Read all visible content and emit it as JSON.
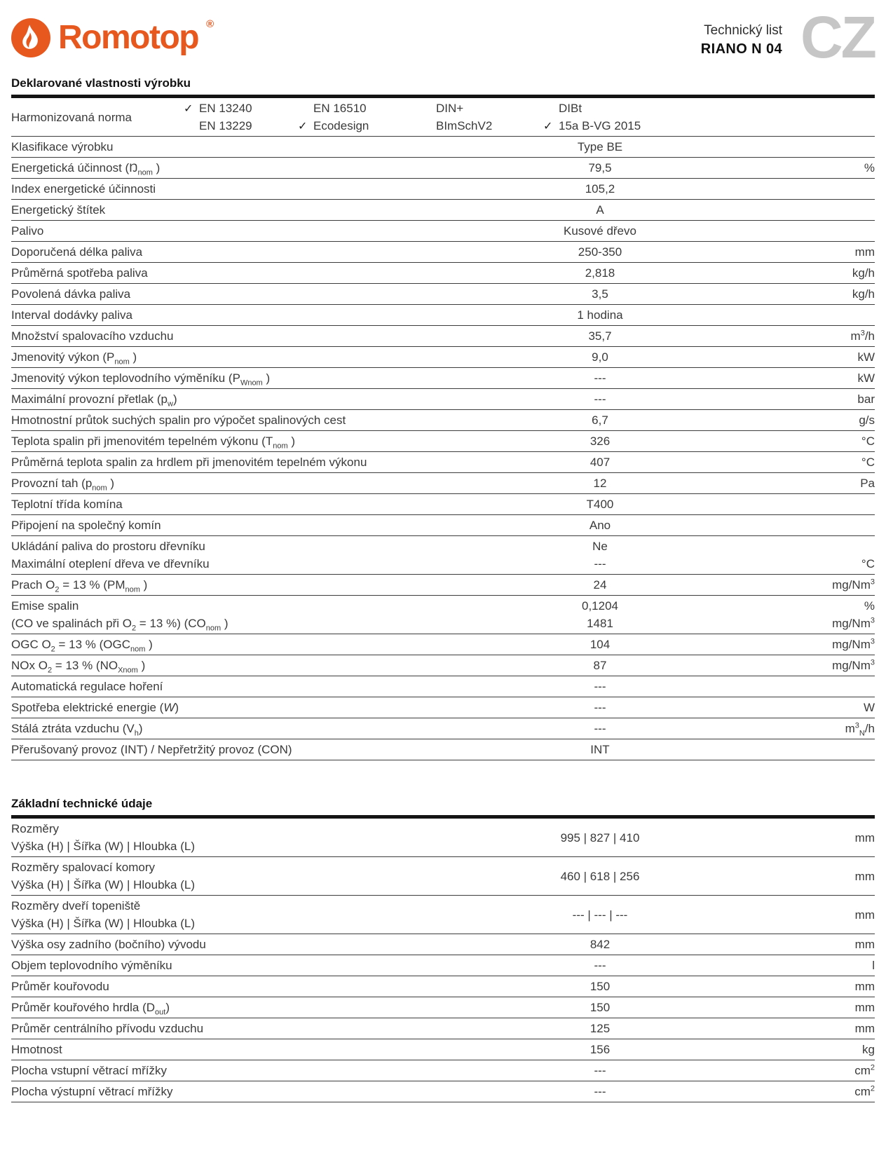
{
  "header": {
    "logo_text": "Romotop",
    "logo_reg": "®",
    "doc_type": "Technický list",
    "product": "RIANO N 04",
    "lang": "CZ"
  },
  "icons": {
    "check": "✓",
    "flame": "flame-icon"
  },
  "colors": {
    "brand_orange": "#E7581F",
    "lang_gray": "#C6C6C6",
    "text": "#3A3A3A"
  },
  "sections": [
    {
      "title": "Deklarované vlastnosti výrobku",
      "norms": {
        "label": "Harmonizovaná norma",
        "columns": [
          {
            "lines": [
              {
                "checked": true,
                "text": "EN 13240"
              },
              {
                "checked": false,
                "text": "EN 13229"
              }
            ]
          },
          {
            "lines": [
              {
                "checked": false,
                "text": "EN 16510"
              },
              {
                "checked": true,
                "text": "Ecodesign"
              }
            ]
          },
          {
            "lines": [
              {
                "checked": false,
                "text": "DIN+"
              },
              {
                "checked": false,
                "text": "BImSchV2"
              }
            ]
          },
          {
            "lines": [
              {
                "checked": false,
                "text": "DIBt"
              },
              {
                "checked": true,
                "text": "15a B-VG 2015"
              }
            ]
          }
        ]
      },
      "rows": [
        {
          "label": [
            "Klasifikace výrobku"
          ],
          "value": [
            "Type BE"
          ],
          "unit": [
            ""
          ]
        },
        {
          "label": [
            "Energetická účinnost (Ŋ_{nom} )"
          ],
          "value": [
            "79,5"
          ],
          "unit": [
            "%"
          ]
        },
        {
          "label": [
            "Index energetické účinnosti"
          ],
          "value": [
            "105,2"
          ],
          "unit": [
            ""
          ]
        },
        {
          "label": [
            "Energetický štítek"
          ],
          "value": [
            "A"
          ],
          "unit": [
            ""
          ]
        },
        {
          "label": [
            "Palivo"
          ],
          "value": [
            "Kusové dřevo"
          ],
          "unit": [
            ""
          ]
        },
        {
          "label": [
            "Doporučená délka paliva"
          ],
          "value": [
            "250-350"
          ],
          "unit": [
            "mm"
          ]
        },
        {
          "label": [
            "Průměrná spotřeba paliva"
          ],
          "value": [
            "2,818"
          ],
          "unit": [
            "kg/h"
          ]
        },
        {
          "label": [
            "Povolená dávka paliva"
          ],
          "value": [
            "3,5"
          ],
          "unit": [
            "kg/h"
          ]
        },
        {
          "label": [
            "Interval dodávky paliva"
          ],
          "value": [
            "1 hodina"
          ],
          "unit": [
            ""
          ]
        },
        {
          "label": [
            "Množství spalovacího vzduchu"
          ],
          "value": [
            "35,7"
          ],
          "unit": [
            "m^{3}/h"
          ]
        },
        {
          "label": [
            "Jmenovitý výkon (P_{nom} )"
          ],
          "value": [
            "9,0"
          ],
          "unit": [
            "kW"
          ]
        },
        {
          "label": [
            "Jmenovitý výkon teplovodního výměníku (P_{Wnom} )"
          ],
          "value": [
            "---"
          ],
          "unit": [
            "kW"
          ]
        },
        {
          "label": [
            "Maximální provozní přetlak (p_{w})"
          ],
          "value": [
            "---"
          ],
          "unit": [
            "bar"
          ]
        },
        {
          "label": [
            "Hmotnostní průtok suchých spalin pro výpočet spalinových cest"
          ],
          "value": [
            "6,7"
          ],
          "unit": [
            "g/s"
          ]
        },
        {
          "label": [
            "Teplota spalin při jmenovitém tepelném výkonu (T_{nom} )"
          ],
          "value": [
            "326"
          ],
          "unit": [
            "°C"
          ]
        },
        {
          "label": [
            "Průměrná teplota spalin za hrdlem při jmenovitém tepelném výkonu"
          ],
          "value": [
            "407"
          ],
          "unit": [
            "°C"
          ]
        },
        {
          "label": [
            "Provozní tah (p_{nom} )"
          ],
          "value": [
            "12"
          ],
          "unit": [
            "Pa"
          ]
        },
        {
          "label": [
            "Teplotní třída komína"
          ],
          "value": [
            "T400"
          ],
          "unit": [
            ""
          ]
        },
        {
          "label": [
            "Připojení na společný komín"
          ],
          "value": [
            "Ano"
          ],
          "unit": [
            ""
          ]
        },
        {
          "label": [
            "Ukládání paliva do prostoru dřevníku",
            "Maximální oteplení dřeva ve dřevníku"
          ],
          "value": [
            "Ne",
            "---"
          ],
          "unit": [
            "",
            "°C"
          ]
        },
        {
          "label": [
            "Prach O_{2} = 13 % (PM_{nom} )"
          ],
          "value": [
            "24"
          ],
          "unit": [
            "mg/Nm^{3}"
          ]
        },
        {
          "label": [
            "Emise spalin",
            "(CO ve spalinách při O_{2} = 13 %) (CO_{nom} )"
          ],
          "value": [
            "0,1204",
            "1481"
          ],
          "unit": [
            "%",
            "mg/Nm^{3}"
          ]
        },
        {
          "label": [
            "OGC O_{2} = 13 % (OGC_{nom} )"
          ],
          "value": [
            "104"
          ],
          "unit": [
            "mg/Nm^{3}"
          ]
        },
        {
          "label": [
            "NOx O_{2} = 13 % (NO_{Xnom} )"
          ],
          "value": [
            "87"
          ],
          "unit": [
            "mg/Nm^{3}"
          ]
        },
        {
          "label": [
            "Automatická regulace hoření"
          ],
          "value": [
            "---"
          ],
          "unit": [
            ""
          ]
        },
        {
          "label": [
            "Spotřeba elektrické energie (*{W}*)"
          ],
          "value": [
            "---"
          ],
          "unit": [
            "W"
          ]
        },
        {
          "label": [
            "Stálá ztráta vzduchu (V_{h})"
          ],
          "value": [
            "---"
          ],
          "unit": [
            "m^{3}_{N}/h"
          ]
        },
        {
          "label": [
            "Přerušovaný provoz (INT) / Nepřetržitý provoz (CON)"
          ],
          "value": [
            "INT"
          ],
          "unit": [
            ""
          ]
        }
      ]
    },
    {
      "title": "Základní technické údaje",
      "rows": [
        {
          "label": [
            "Rozměry",
            "Výška (H) | Šířka (W) | Hloubka (L)"
          ],
          "value": [
            "995 | 827 | 410"
          ],
          "unit": [
            "mm"
          ]
        },
        {
          "label": [
            "Rozměry spalovací komory",
            "Výška (H) | Šířka (W) | Hloubka (L)"
          ],
          "value": [
            "460 | 618 | 256"
          ],
          "unit": [
            "mm"
          ]
        },
        {
          "label": [
            "Rozměry dveří topeniště",
            "Výška (H) | Šířka (W) | Hloubka (L)"
          ],
          "value": [
            "--- | --- | ---"
          ],
          "unit": [
            "mm"
          ]
        },
        {
          "label": [
            "Výška osy zadního (bočního) vývodu"
          ],
          "value": [
            "842"
          ],
          "unit": [
            "mm"
          ]
        },
        {
          "label": [
            "Objem teplovodního výměníku"
          ],
          "value": [
            "---"
          ],
          "unit": [
            "l"
          ]
        },
        {
          "label": [
            "Průměr kouřovodu"
          ],
          "value": [
            "150"
          ],
          "unit": [
            "mm"
          ]
        },
        {
          "label": [
            "Průměr kouřového hrdla (D_{out})"
          ],
          "value": [
            "150"
          ],
          "unit": [
            "mm"
          ]
        },
        {
          "label": [
            "Průměr centrálního přívodu vzduchu"
          ],
          "value": [
            "125"
          ],
          "unit": [
            "mm"
          ]
        },
        {
          "label": [
            "Hmotnost"
          ],
          "value": [
            "156"
          ],
          "unit": [
            "kg"
          ]
        },
        {
          "label": [
            "Plocha vstupní větrací mřížky"
          ],
          "value": [
            "---"
          ],
          "unit": [
            "cm^{2}"
          ]
        },
        {
          "label": [
            "Plocha výstupní větrací mřížky"
          ],
          "value": [
            "---"
          ],
          "unit": [
            "cm^{2}"
          ]
        }
      ]
    }
  ]
}
